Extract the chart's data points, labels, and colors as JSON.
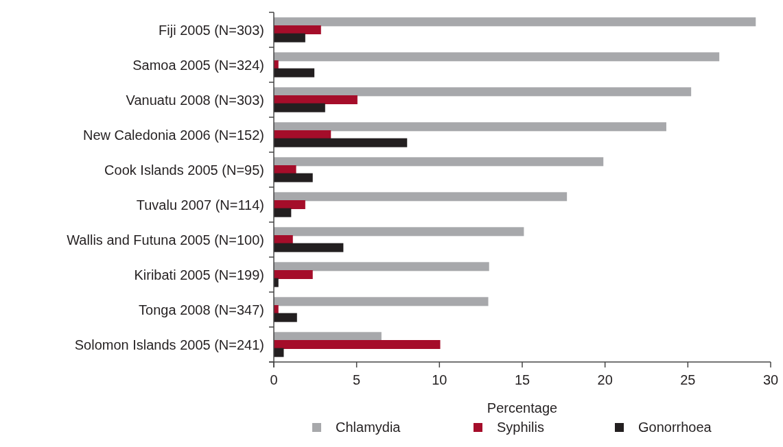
{
  "chart_data": {
    "type": "bar",
    "orientation": "horizontal",
    "xlabel": "Percentage",
    "categories": [
      "Fiji 2005 (N=303)",
      "Samoa 2005 (N=324)",
      "Vanuatu 2008 (N=303)",
      "New Caledonia 2006 (N=152)",
      "Cook Islands 2005 (N=95)",
      "Tuvalu 2007 (N=114)",
      "Wallis and Futuna 2005 (N=100)",
      "Kiribati 2005 (N=199)",
      "Tonga 2008 (N=347)",
      "Solomon Islands 2005 (N=241)"
    ],
    "series": [
      {
        "name": "Chlamydia",
        "color": "#a7a8ab",
        "values": [
          29.1,
          26.9,
          25.2,
          23.7,
          19.9,
          17.7,
          15.1,
          13.0,
          12.95,
          6.5
        ]
      },
      {
        "name": "Syphilis",
        "color": "#a50d2a",
        "values": [
          2.85,
          0.28,
          5.05,
          3.45,
          1.35,
          1.9,
          1.15,
          2.35,
          0.28,
          10.05
        ]
      },
      {
        "name": "Gonorrhoea",
        "color": "#231f20",
        "values": [
          1.9,
          2.45,
          3.1,
          8.05,
          2.35,
          1.05,
          4.2,
          0.28,
          1.4,
          0.6
        ]
      }
    ],
    "xlim": [
      0,
      30
    ],
    "xticks": [
      0,
      5,
      10,
      15,
      20,
      25,
      30
    ],
    "grid": false,
    "legend": "bottom"
  }
}
